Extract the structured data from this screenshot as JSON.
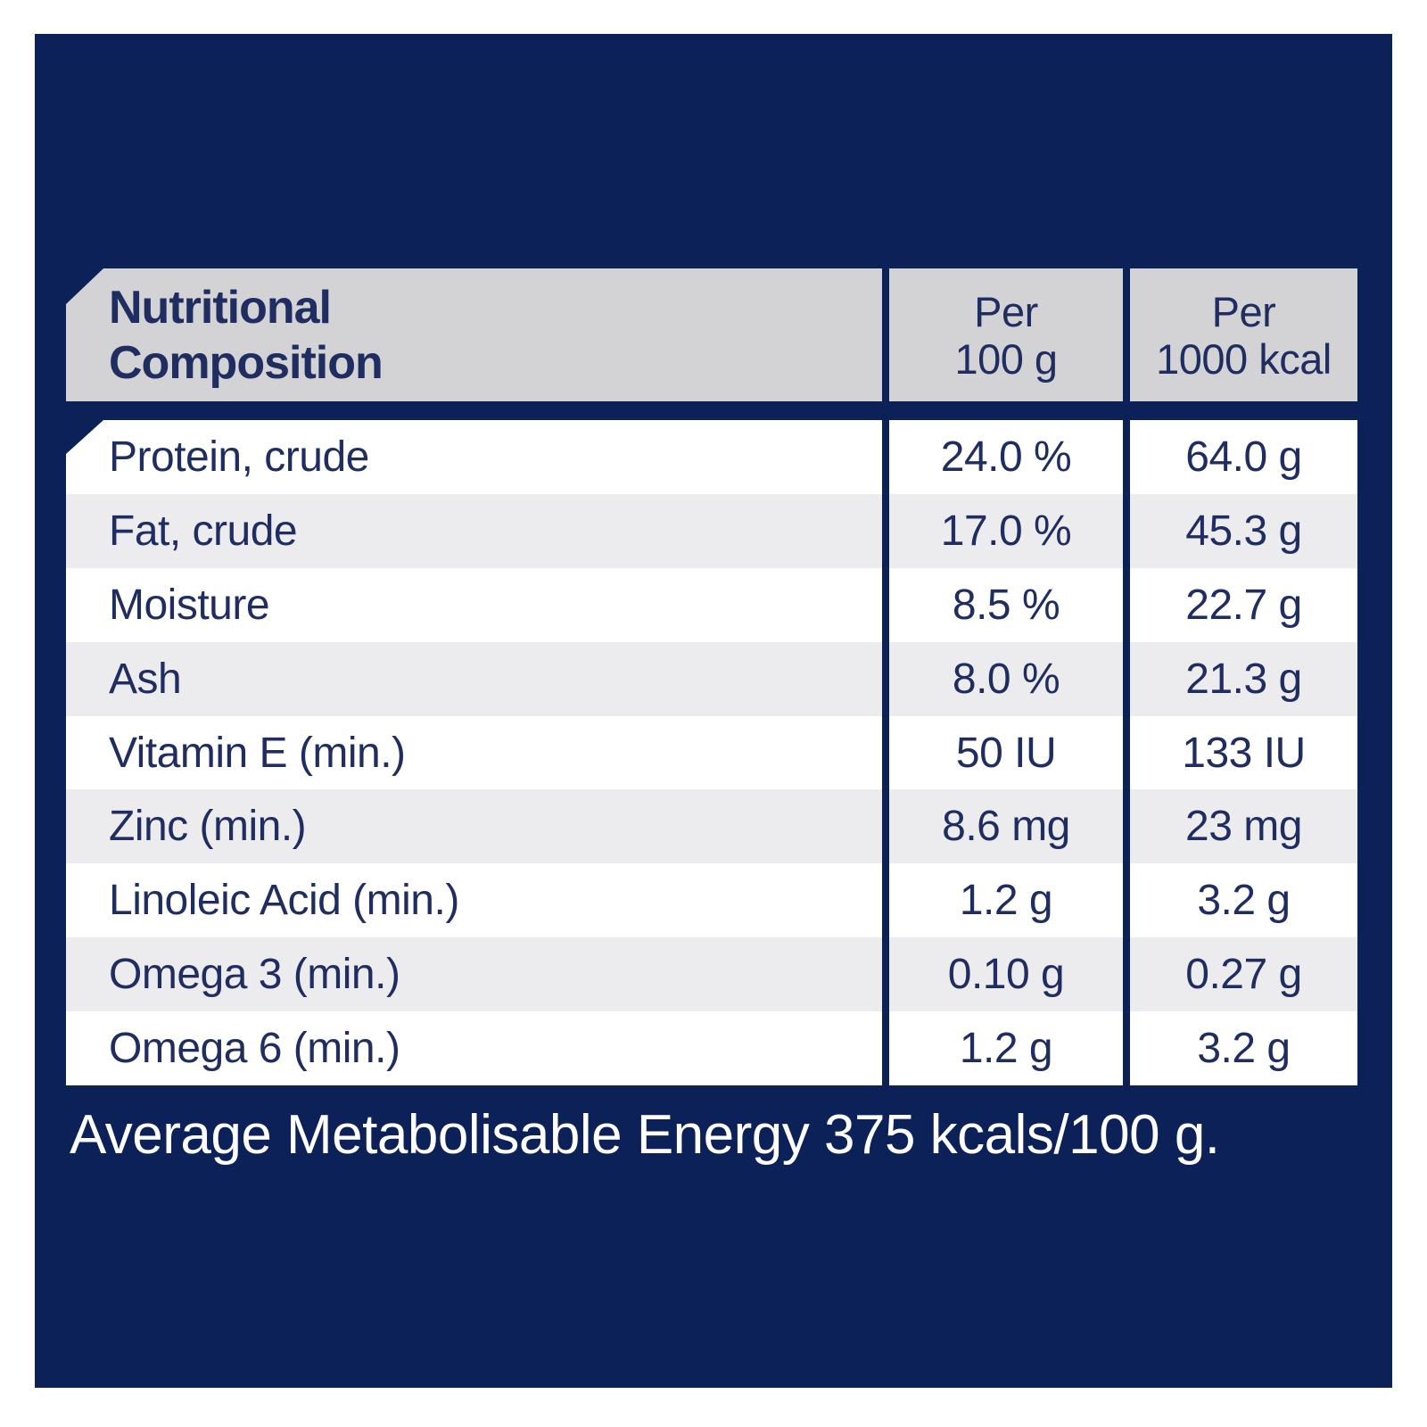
{
  "colors": {
    "panel_navy": "#0b2157",
    "header_gray": "#d3d3d5",
    "row_alt_gray": "#ececee",
    "row_white": "#ffffff",
    "text_navy": "#1f2d60",
    "footnote_white": "#ffffff"
  },
  "table": {
    "header": {
      "title_lines": {
        "0": "Nutritional",
        "1": "Composition"
      },
      "col_per_100g_lines": {
        "0": "Per",
        "1": "100 g"
      },
      "col_per_1000kcal_lines": {
        "0": "Per",
        "1": "1000 kcal"
      }
    },
    "rows": {
      "0": {
        "label": "Protein, crude",
        "per_100g": "24.0 %",
        "per_1000kcal": "64.0 g"
      },
      "1": {
        "label": "Fat, crude",
        "per_100g": "17.0 %",
        "per_1000kcal": "45.3 g"
      },
      "2": {
        "label": "Moisture",
        "per_100g": "8.5 %",
        "per_1000kcal": "22.7 g"
      },
      "3": {
        "label": "Ash",
        "per_100g": "8.0 %",
        "per_1000kcal": "21.3 g"
      },
      "4": {
        "label": "Vitamin E (min.)",
        "per_100g": "50 IU",
        "per_1000kcal": "133 IU"
      },
      "5": {
        "label": "Zinc (min.)",
        "per_100g": "8.6 mg",
        "per_1000kcal": "23 mg"
      },
      "6": {
        "label": "Linoleic Acid (min.)",
        "per_100g": "1.2 g",
        "per_1000kcal": "3.2 g"
      },
      "7": {
        "label": "Omega 3 (min.)",
        "per_100g": "0.10 g",
        "per_1000kcal": "0.27 g"
      },
      "8": {
        "label": "Omega 6 (min.)",
        "per_100g": "1.2 g",
        "per_1000kcal": "3.2 g"
      }
    }
  },
  "footnote": "Average Metabolisable Energy 375 kcals/100 g."
}
